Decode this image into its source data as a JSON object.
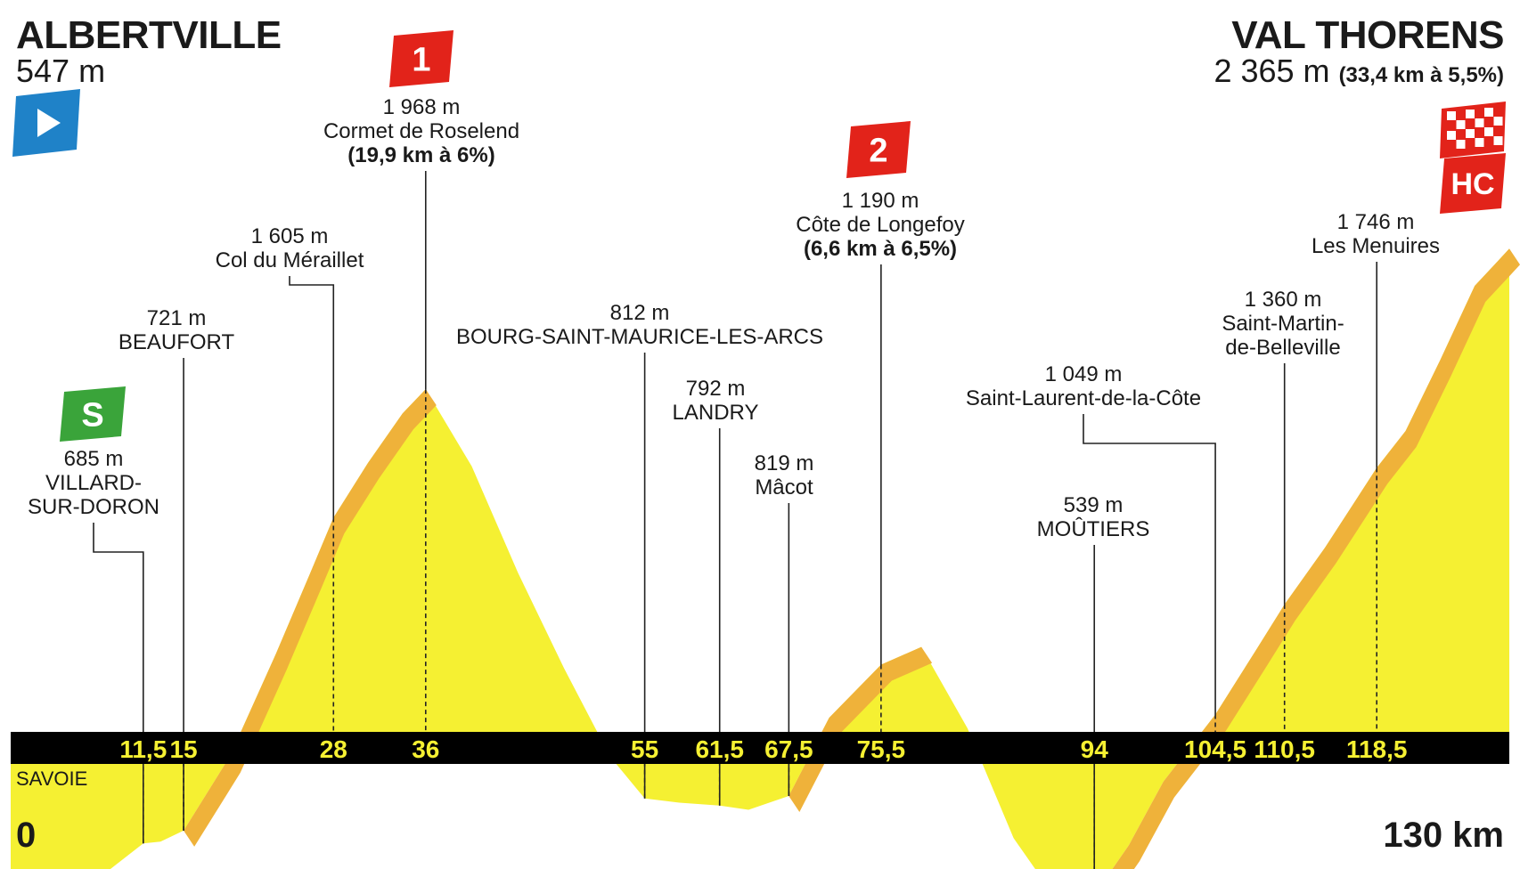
{
  "header": {
    "start_name": "ALBERTVILLE",
    "start_altitude": "547 m",
    "finish_name": "VAL THORENS",
    "finish_altitude": "2 365 m",
    "finish_climb": "(33,4 km à 5,5%)"
  },
  "footer": {
    "department": "SAVOIE",
    "km_start": "0",
    "km_end": "130 km"
  },
  "colors": {
    "profile_fill": "#f5f032",
    "climb_shade": "#efb23a",
    "axis_band": "#000000",
    "axis_text": "#f5f032",
    "kom_badge": "#e2231a",
    "start_badge": "#1f82c8",
    "sprint_badge": "#3aa43a"
  },
  "badges": {
    "kom1": "1",
    "kom2": "2",
    "hc": "HC",
    "sprint": "S"
  },
  "chart_data": {
    "type": "area",
    "title": "",
    "xlabel": "",
    "ylabel": "",
    "xlim": [
      0,
      130
    ],
    "ylim": [
      0,
      2500
    ],
    "x_unit": "km",
    "y_unit": "m",
    "profile": [
      [
        0,
        547
      ],
      [
        1.5,
        500
      ],
      [
        5,
        520
      ],
      [
        11.5,
        685
      ],
      [
        13,
        690
      ],
      [
        15,
        721
      ],
      [
        19,
        930
      ],
      [
        23,
        1220
      ],
      [
        26,
        1450
      ],
      [
        28,
        1605
      ],
      [
        31,
        1760
      ],
      [
        34,
        1900
      ],
      [
        36,
        1968
      ],
      [
        40,
        1750
      ],
      [
        44,
        1450
      ],
      [
        48,
        1180
      ],
      [
        52,
        930
      ],
      [
        55,
        812
      ],
      [
        58,
        800
      ],
      [
        61.5,
        792
      ],
      [
        64,
        780
      ],
      [
        67.5,
        819
      ],
      [
        71,
        1040
      ],
      [
        75.5,
        1190
      ],
      [
        79,
        1240
      ],
      [
        83,
        1010
      ],
      [
        87,
        700
      ],
      [
        90,
        560
      ],
      [
        94,
        539
      ],
      [
        97,
        680
      ],
      [
        100,
        860
      ],
      [
        104.5,
        1049
      ],
      [
        108,
        1230
      ],
      [
        110.5,
        1360
      ],
      [
        114,
        1520
      ],
      [
        118.5,
        1746
      ],
      [
        121,
        1850
      ],
      [
        124,
        2050
      ],
      [
        127,
        2260
      ],
      [
        129,
        2330
      ],
      [
        130,
        2365
      ]
    ],
    "climbs": [
      {
        "from": 15,
        "to": 36
      },
      {
        "from": 67.5,
        "to": 79
      },
      {
        "from": 94,
        "to": 130
      }
    ],
    "points": [
      {
        "km": 11.5,
        "tick": "11,5",
        "lines": [
          "685 m",
          "VILLARD-",
          "SUR-DORON"
        ],
        "type": "sprint"
      },
      {
        "km": 15,
        "tick": "15",
        "lines": [
          "721 m",
          "BEAUFORT"
        ]
      },
      {
        "km": 28,
        "tick": "28",
        "lines": [
          "1 605 m",
          "Col du Méraillet"
        ]
      },
      {
        "km": 36,
        "tick": "36",
        "lines": [
          "1 968 m",
          "Cormet de Roselend",
          "(19,9 km à 6%)"
        ],
        "type": "kom1"
      },
      {
        "km": 55,
        "tick": "55",
        "lines": [
          "812 m",
          "BOURG-SAINT-MAURICE-LES-ARCS"
        ]
      },
      {
        "km": 61.5,
        "tick": "61,5",
        "lines": [
          "792 m",
          "LANDRY"
        ]
      },
      {
        "km": 67.5,
        "tick": "67,5",
        "lines": [
          "819 m",
          "Mâcot"
        ]
      },
      {
        "km": 75.5,
        "tick": "75,5",
        "lines": [
          "1 190 m",
          "Côte de Longefoy",
          "(6,6 km à 6,5%)"
        ],
        "type": "kom2"
      },
      {
        "km": 94,
        "tick": "94",
        "lines": [
          "539 m",
          "MOÛTIERS"
        ]
      },
      {
        "km": 104.5,
        "tick": "104,5",
        "lines": [
          "1 049 m",
          "Saint-Laurent-de-la-Côte"
        ]
      },
      {
        "km": 110.5,
        "tick": "110,5",
        "lines": [
          "1 360 m",
          "Saint-Martin-",
          "de-Belleville"
        ]
      },
      {
        "km": 118.5,
        "tick": "118,5",
        "lines": [
          "1 746 m",
          "Les Menuires"
        ]
      }
    ]
  }
}
